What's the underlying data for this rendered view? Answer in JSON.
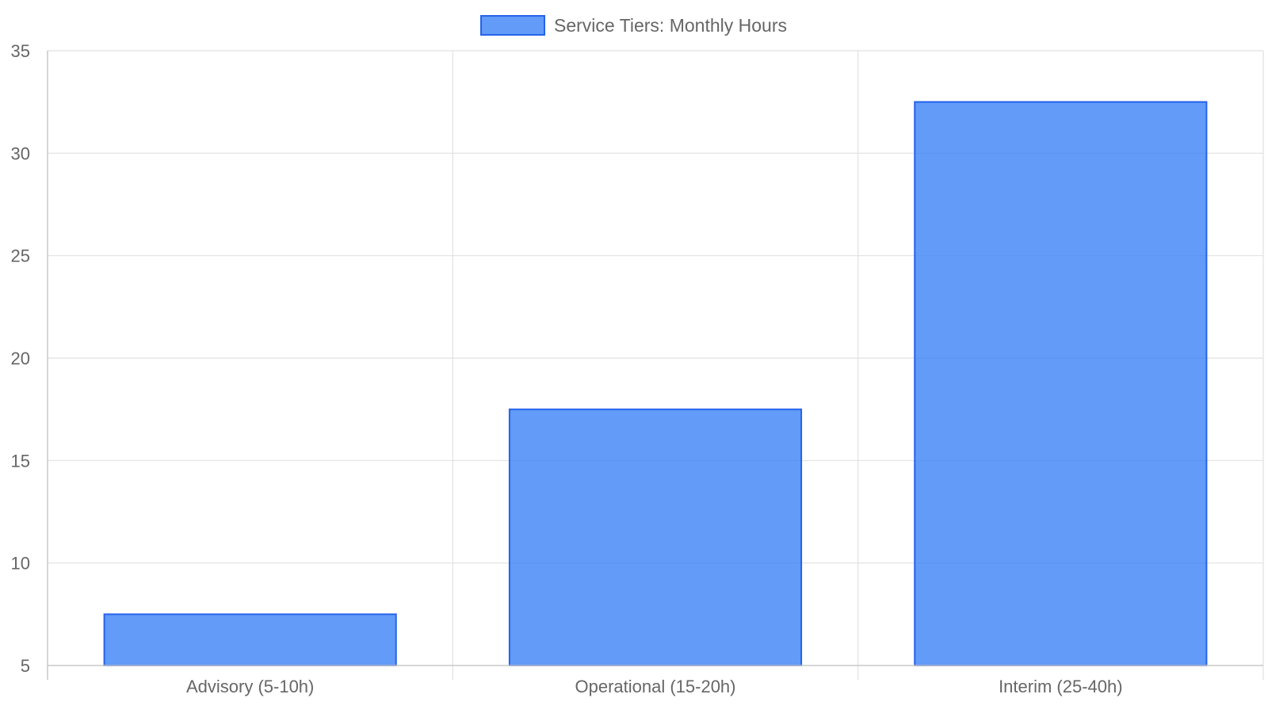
{
  "chart_data": {
    "type": "bar",
    "title": "",
    "xlabel": "",
    "ylabel": "",
    "categories": [
      "Advisory (5-10h)",
      "Operational (15-20h)",
      "Interim (25-40h)"
    ],
    "series": [
      {
        "name": "Service Tiers: Monthly Hours",
        "values": [
          7.5,
          17.5,
          32.5
        ]
      }
    ],
    "ylim": [
      5,
      35
    ],
    "yticks": [
      5,
      10,
      15,
      20,
      25,
      30,
      35
    ],
    "grid": true,
    "legend_position": "top-center"
  },
  "colors": {
    "bar_fill": "#3b82f6",
    "bar_stroke": "#2563eb",
    "grid": "#e1e1e1",
    "axis": "#c8c8c8",
    "text": "#666666"
  }
}
